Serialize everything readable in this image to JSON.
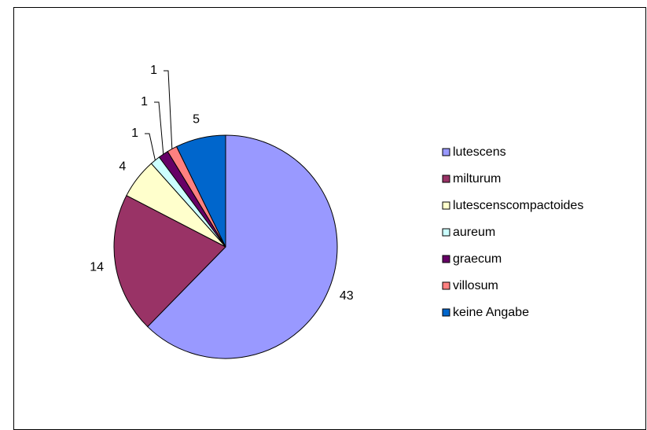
{
  "chart_data": {
    "type": "pie",
    "categories": [
      "lutescens",
      "milturum",
      "lutescenscompactoides",
      "aureum",
      "graecum",
      "villosum",
      "keine Angabe"
    ],
    "values": [
      43,
      14,
      4,
      1,
      1,
      1,
      5
    ],
    "colors": [
      "#9999ff",
      "#993366",
      "#ffffcc",
      "#ccffff",
      "#660066",
      "#ff8080",
      "#0066cc"
    ],
    "legend": "right"
  }
}
